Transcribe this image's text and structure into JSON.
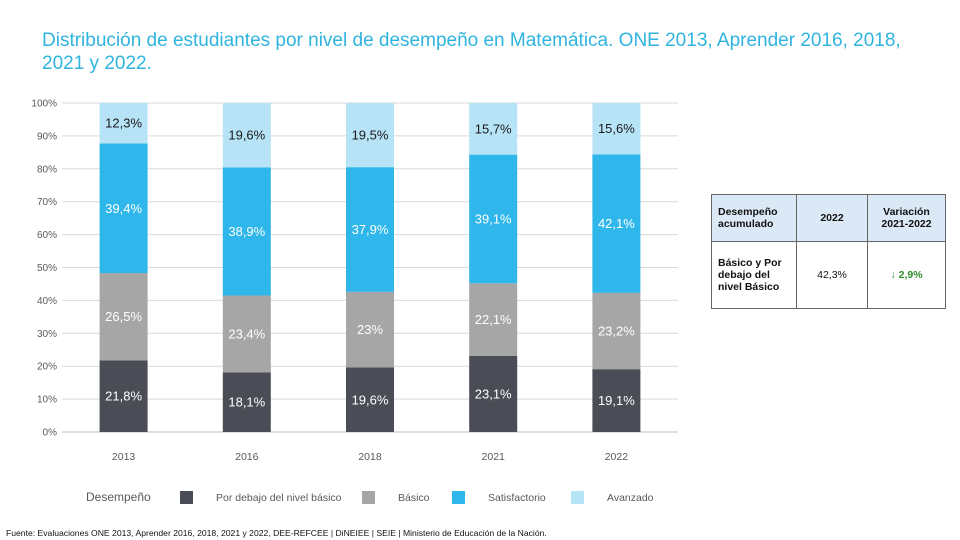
{
  "title": "Distribución de estudiantes por nivel de desempeño en Matemática. ONE 2013, Aprender 2016, 2018, 2021 y 2022.",
  "chart_data": {
    "type": "bar",
    "stacked": true,
    "categories": [
      "2013",
      "2016",
      "2018",
      "2021",
      "2022"
    ],
    "series": [
      {
        "name": "Por debajo del nivel básico",
        "color": "#4a4d55",
        "values": [
          21.8,
          18.1,
          19.6,
          23.1,
          19.1
        ],
        "labels": [
          "21,8%",
          "18,1%",
          "19,6%",
          "23,1%",
          "19,1%"
        ]
      },
      {
        "name": "Básico",
        "color": "#a6a6a6",
        "values": [
          26.5,
          23.4,
          23,
          22.1,
          23.2
        ],
        "labels": [
          "26,5%",
          "23,4%",
          "23%",
          "22,1%",
          "23,2%"
        ]
      },
      {
        "name": "Satisfactorio",
        "color": "#2fb6ea",
        "values": [
          39.4,
          38.9,
          37.9,
          39.1,
          42.1
        ],
        "labels": [
          "39,4%",
          "38,9%",
          "37,9%",
          "39,1%",
          "42,1%"
        ]
      },
      {
        "name": "Avanzado",
        "color": "#b7e3f7",
        "values": [
          12.3,
          19.6,
          19.5,
          15.7,
          15.6
        ],
        "labels": [
          "12,3%",
          "19,6%",
          "19,5%",
          "15,7%",
          "15,6%"
        ]
      }
    ],
    "yticks": [
      "0%",
      "10%",
      "20%",
      "30%",
      "40%",
      "50%",
      "60%",
      "70%",
      "80%",
      "90%",
      "100%"
    ],
    "ylim": [
      0,
      100
    ],
    "legend_title": "Desempeño",
    "legend_position": "bottom",
    "grid": true
  },
  "table": {
    "headers": [
      "Desempeño acumulado",
      "2022",
      "Variación 2021-2022"
    ],
    "row": {
      "label": "Básico y Por debajo del nivel Básico",
      "value": "42,3%",
      "variation": "2,9%",
      "arrow": "↓"
    },
    "variation_color": "#2e8b2e"
  },
  "source": "Fuente: Evaluaciones ONE 2013, Aprender 2016, 2018, 2021 y 2022, DEE-REFCEE | DiNEIEE | SEIE | Ministerio de Educación de la Nación."
}
